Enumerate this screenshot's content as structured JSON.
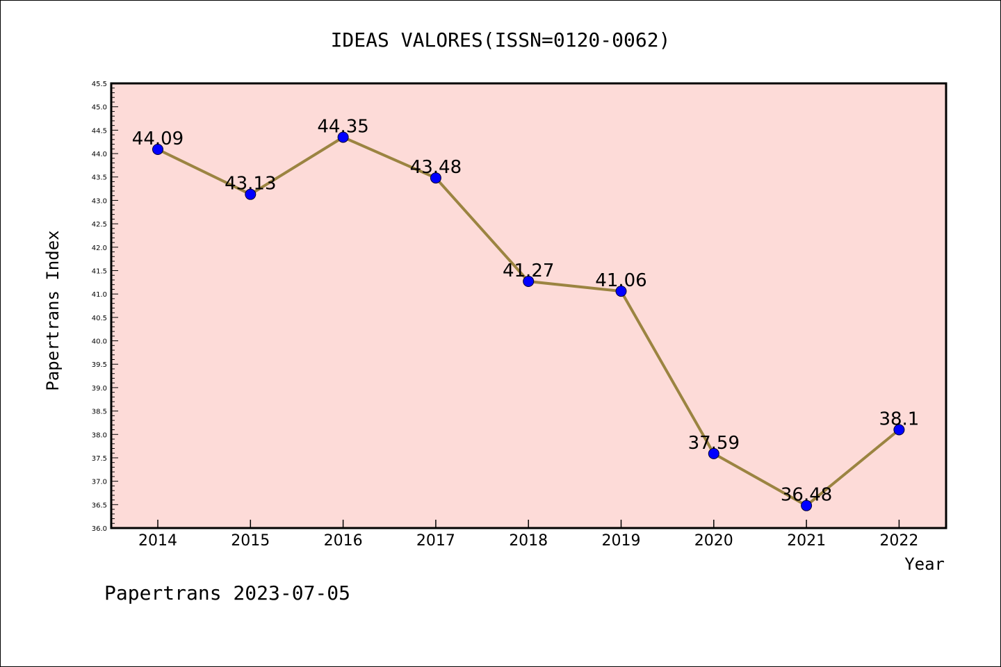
{
  "chart_data": {
    "type": "line",
    "title": "IDEAS VALORES(ISSN=0120-0062)",
    "xlabel": "Year",
    "ylabel": "Papertrans Index",
    "categories": [
      "2014",
      "2015",
      "2016",
      "2017",
      "2018",
      "2019",
      "2020",
      "2021",
      "2022"
    ],
    "values": [
      44.09,
      43.13,
      44.35,
      43.48,
      41.27,
      41.06,
      37.59,
      36.48,
      38.1
    ],
    "data_labels": [
      "44.09",
      "43.13",
      "44.35",
      "43.48",
      "41.27",
      "41.06",
      "37.59",
      "36.48",
      "38.1"
    ],
    "ylim": [
      36.0,
      45.5
    ],
    "ytick_step": 0.5,
    "ytick_labels": [
      "36.0",
      "36.5",
      "37.0",
      "37.5",
      "38.0",
      "38.5",
      "39.0",
      "39.5",
      "40.0",
      "40.5",
      "41.0",
      "41.5",
      "42.0",
      "42.5",
      "43.0",
      "43.5",
      "44.0",
      "44.5",
      "45.0",
      "45.5"
    ],
    "grid": false,
    "legend": "none",
    "plot_background": "#fddbd8",
    "line_color": "#9b8441",
    "marker_color": "#0000ff"
  },
  "footer": {
    "text": "Papertrans 2023-07-05"
  }
}
